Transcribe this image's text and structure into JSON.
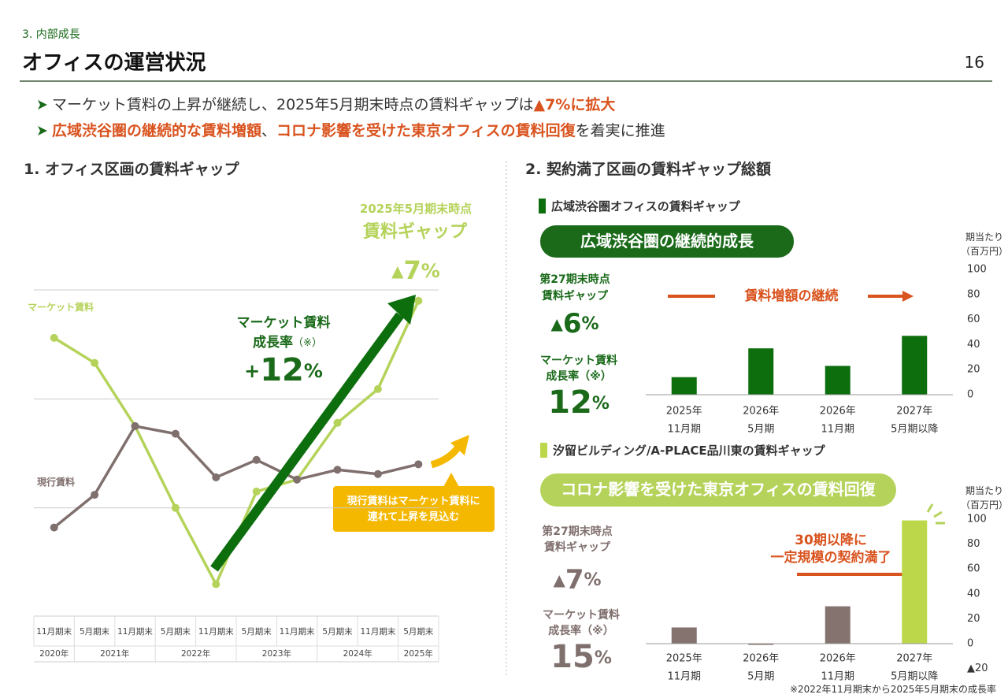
{
  "header": {
    "section": "3. 内部成長",
    "title": "オフィスの運営状況",
    "page": 16
  },
  "bullets": [
    [
      {
        "text": "マーケット賃料の上昇が継続し、2025年5月期末時点の賃料ギャップは",
        "em": false
      },
      {
        "text": "▲7%に拡大",
        "em": true
      }
    ],
    [
      {
        "text": "広域渋谷圏の継続的な賃料増額",
        "em": true
      },
      {
        "text": "、",
        "em": false
      },
      {
        "text": "コロナ影響を受けた東京オフィスの賃料回復",
        "em": true
      },
      {
        "text": "を着実に推進",
        "em": false
      }
    ]
  ],
  "sections": [
    "1. オフィス区画の賃料ギャップ",
    "2. 契約満了区画の賃料ギャップ総額"
  ],
  "chart_data": [
    {
      "type": "line",
      "categories": [
        "11月期末",
        "5月期末",
        "11月期末",
        "5月期末",
        "11月期末",
        "5月期末",
        "11月期末",
        "5月期末",
        "11月期末",
        "5月期末"
      ],
      "year_groups": [
        "2020年",
        "2021年",
        "2022年",
        "2023年",
        "2024年",
        "2025年"
      ],
      "ylim": [
        0,
        3
      ],
      "yticks": [
        1,
        2,
        3
      ],
      "grid": true,
      "series": [
        {
          "name": "マーケット賃料",
          "color": "#b5d35a",
          "values": [
            2.56,
            2.33,
            1.75,
            1.0,
            0.3,
            1.15,
            1.26,
            1.78,
            2.09,
            2.9
          ]
        },
        {
          "name": "現行賃料",
          "color": "#7f6f6d",
          "values": [
            0.82,
            1.12,
            1.75,
            1.68,
            1.28,
            1.44,
            1.26,
            1.35,
            1.31,
            1.4
          ]
        }
      ],
      "gap_note": {
        "lines": [
          "2025年5月期末時点",
          "賃料ギャップ"
        ],
        "sign": "▲",
        "value": 7,
        "unit": "%"
      },
      "growth_note": {
        "lines": [
          "マーケット賃料",
          "成長率"
        ],
        "mark": "（※）",
        "sign": "+",
        "value": 12,
        "unit": "%"
      },
      "callout": [
        "現行賃料はマーケット賃料に",
        "連れて上昇を見込む"
      ]
    },
    {
      "type": "bar",
      "title": "広域渋谷圏オフィスの賃料ギャップ",
      "banner": "広域渋谷圏の継続的成長",
      "axis_label": [
        "期当たり",
        "（百万円）"
      ],
      "categories": [
        [
          "2025年",
          "11月期"
        ],
        [
          "2026年",
          "5月期"
        ],
        [
          "2026年",
          "11月期"
        ],
        [
          "2027年",
          "5月期以降"
        ]
      ],
      "values": [
        14,
        37,
        23,
        47
      ],
      "colors": [
        "#0d6e0d",
        "#0d6e0d",
        "#0d6e0d",
        "#0d6e0d"
      ],
      "ylim": [
        0,
        100
      ],
      "yticks": [
        0,
        20,
        40,
        60,
        80,
        100
      ],
      "gap": {
        "lines": [
          "第27期末時点",
          "賃料ギャップ"
        ],
        "sign": "▲",
        "value": 6,
        "unit": "%"
      },
      "growth": {
        "lines": [
          "マーケット賃料",
          "成長率（※）"
        ],
        "value": 12,
        "unit": "%"
      },
      "note": [
        "賃料増額の継続"
      ]
    },
    {
      "type": "bar",
      "title": "汐留ビルディング/A-PLACE品川東の賃料ギャップ",
      "banner": "コロナ影響を受けた東京オフィスの賃料回復",
      "axis_label": [
        "期当たり",
        "（百万円）"
      ],
      "categories": [
        [
          "2025年",
          "11月期"
        ],
        [
          "2026年",
          "5月期"
        ],
        [
          "2026年",
          "11月期"
        ],
        [
          "2027年",
          "5月期以降"
        ]
      ],
      "values": [
        13,
        -1,
        30,
        99
      ],
      "colors": [
        "#857370",
        "#857370",
        "#857370",
        "#bcd84a"
      ],
      "ylim": [
        -20,
        100
      ],
      "yticks": [
        {
          "value": -20,
          "label": "▲20"
        },
        0,
        20,
        40,
        60,
        80,
        100
      ],
      "gap": {
        "lines": [
          "第27期末時点",
          "賃料ギャップ"
        ],
        "sign": "▲",
        "value": 7,
        "unit": "%"
      },
      "growth": {
        "lines": [
          "マーケット賃料",
          "成長率（※）"
        ],
        "value": 15,
        "unit": "%"
      },
      "note": [
        "30期以降に",
        "一定規模の契約満了"
      ]
    }
  ],
  "footnote": "※2022年11月期末から2025年5月期末の成長率"
}
